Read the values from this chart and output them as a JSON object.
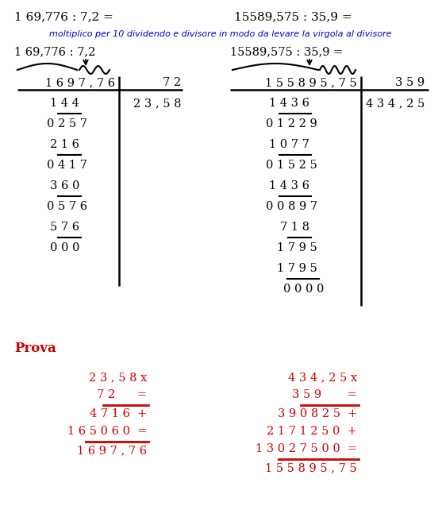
{
  "black": "#000000",
  "red": "#cc0000",
  "blue": "#0000cc",
  "fig_bg": "#ffffff",
  "title1": "1 69,776 : 7,2 =",
  "title2": "15589,575 : 35,9 =",
  "subtitle": "moltiplico per 10 dividendo e divisore in modo da levare la virgola al divisore",
  "left_label": "1 69,776 : 7,2",
  "right_label": "15589,575 : 35,9 =",
  "prova": "Prova",
  "font_size_title": 11,
  "font_size_body": 10.5,
  "font_size_subtitle": 8,
  "font_size_prova_title": 12
}
